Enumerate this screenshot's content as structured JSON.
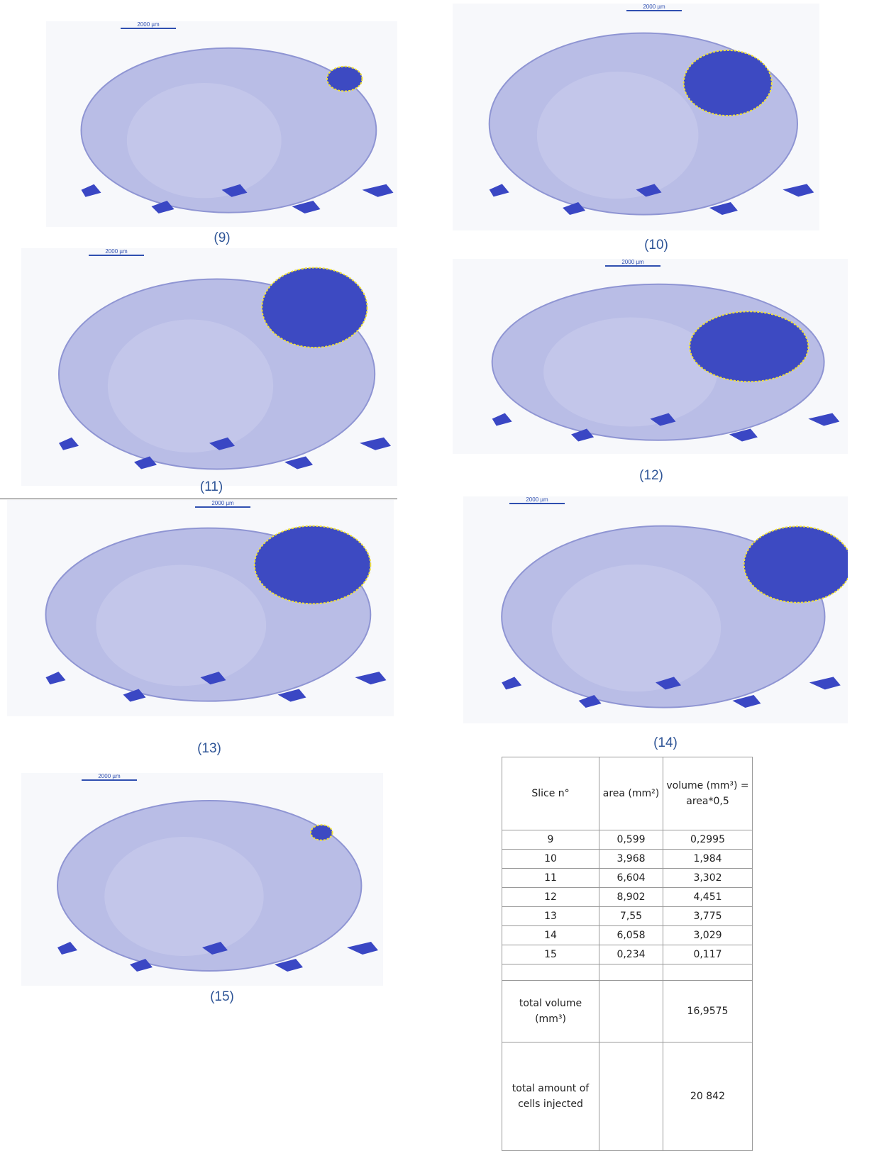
{
  "panels": [
    {
      "caption": "(9)",
      "scale_bar": "2000 µm"
    },
    {
      "caption": "(10)",
      "scale_bar": "2000 µm"
    },
    {
      "caption": "(11)",
      "scale_bar": "2000 µm"
    },
    {
      "caption": "(12)",
      "scale_bar": "2000 µm"
    },
    {
      "caption": "(13)",
      "scale_bar": "2000 µm"
    },
    {
      "caption": "(14)",
      "scale_bar": "2000 µm"
    },
    {
      "caption": "(15)",
      "scale_bar": "2000 µm"
    }
  ],
  "table": {
    "header": [
      "Slice n°",
      "area (mm²)",
      "volume (mm³) = area*0,5"
    ],
    "rows": [
      [
        "9",
        "0,599",
        "0,2995"
      ],
      [
        "10",
        "3,968",
        "1,984"
      ],
      [
        "11",
        "6,604",
        "3,302"
      ],
      [
        "12",
        "8,902",
        "4,451"
      ],
      [
        "13",
        "7,55",
        "3,775"
      ],
      [
        "14",
        "6,058",
        "3,029"
      ],
      [
        "15",
        "0,234",
        "0,117"
      ]
    ],
    "totals": [
      {
        "label": "total volume (mm³)",
        "value": "16,9575"
      },
      {
        "label": "total amount of cells injected",
        "value": "20 842"
      }
    ]
  }
}
